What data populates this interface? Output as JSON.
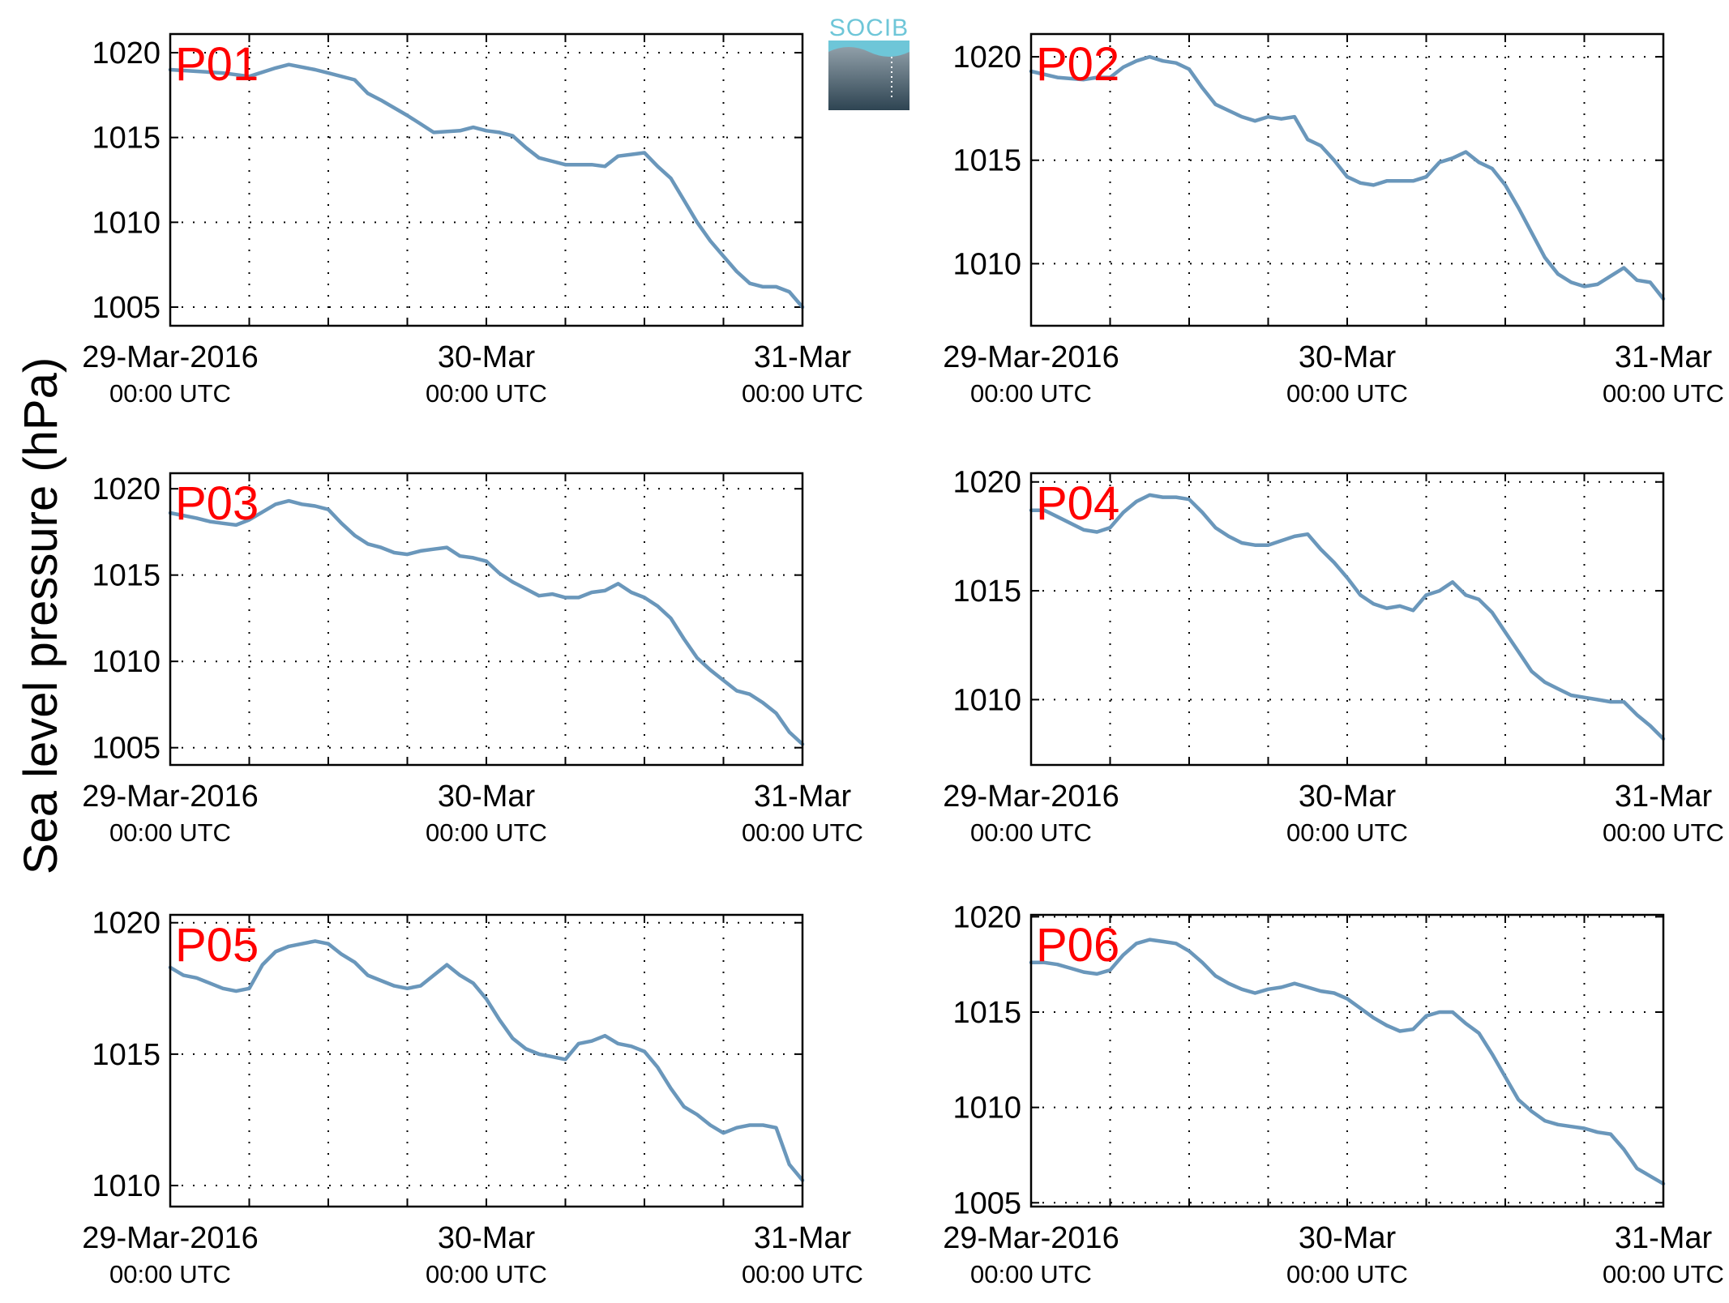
{
  "figure": {
    "ylabel": "Sea level pressure (hPa)",
    "logo_text": "SOCIB"
  },
  "colors": {
    "line": "#6a97bb",
    "label": "#ff0000",
    "logo": "#6ec6d8"
  },
  "chart_data": [
    {
      "type": "line",
      "label": "P01",
      "xlabels": [
        {
          "date": "29-Mar-2016",
          "time": "00:00 UTC"
        },
        {
          "date": "30-Mar",
          "time": "00:00 UTC"
        },
        {
          "date": "31-Mar",
          "time": "00:00 UTC"
        }
      ],
      "xlim": [
        0,
        48
      ],
      "ylim": [
        1003.9,
        1021.1
      ],
      "yticks": [
        1005,
        1010,
        1015,
        1020
      ],
      "grid": true,
      "x": [
        0,
        2,
        4,
        5,
        6,
        8,
        9,
        11,
        12,
        14,
        15,
        16,
        18,
        19,
        20,
        22,
        23,
        24,
        25,
        26,
        27,
        28,
        29,
        30,
        31,
        32,
        33,
        34,
        35,
        36,
        37,
        38,
        39,
        40,
        41,
        42,
        43,
        44,
        45,
        46,
        47,
        48
      ],
      "y": [
        1019.0,
        1018.9,
        1018.8,
        1018.7,
        1018.6,
        1019.1,
        1019.3,
        1019.0,
        1018.8,
        1018.4,
        1017.6,
        1017.2,
        1016.3,
        1015.8,
        1015.3,
        1015.4,
        1015.6,
        1015.4,
        1015.3,
        1015.1,
        1014.4,
        1013.8,
        1013.6,
        1013.4,
        1013.4,
        1013.4,
        1013.3,
        1013.9,
        1014.0,
        1014.1,
        1013.3,
        1012.6,
        1011.3,
        1010.0,
        1008.9,
        1008.0,
        1007.1,
        1006.4,
        1006.2,
        1006.2,
        1005.9,
        1005.0
      ]
    },
    {
      "type": "line",
      "label": "P02",
      "xlabels": [
        {
          "date": "29-Mar-2016",
          "time": "00:00 UTC"
        },
        {
          "date": "30-Mar",
          "time": "00:00 UTC"
        },
        {
          "date": "31-Mar",
          "time": "00:00 UTC"
        }
      ],
      "xlim": [
        0,
        48
      ],
      "ylim": [
        1007.0,
        1021.1
      ],
      "yticks": [
        1010,
        1015,
        1020
      ],
      "grid": true,
      "x": [
        0,
        2,
        4,
        5,
        6,
        7,
        8,
        9,
        10,
        11,
        12,
        13,
        14,
        15,
        16,
        17,
        18,
        19,
        20,
        21,
        22,
        23,
        24,
        25,
        26,
        27,
        28,
        29,
        30,
        31,
        32,
        33,
        34,
        35,
        36,
        37,
        38,
        39,
        40,
        41,
        42,
        43,
        44,
        45,
        46,
        47,
        48
      ],
      "y": [
        1019.3,
        1019.0,
        1018.9,
        1019.0,
        1019.0,
        1019.5,
        1019.8,
        1020.0,
        1019.8,
        1019.7,
        1019.4,
        1018.5,
        1017.7,
        1017.4,
        1017.1,
        1016.9,
        1017.1,
        1017.0,
        1017.1,
        1016.0,
        1015.7,
        1015.0,
        1014.2,
        1013.9,
        1013.8,
        1014.0,
        1014.0,
        1014.0,
        1014.2,
        1014.9,
        1015.1,
        1015.4,
        1014.9,
        1014.6,
        1013.8,
        1012.7,
        1011.5,
        1010.3,
        1009.5,
        1009.1,
        1008.9,
        1009.0,
        1009.4,
        1009.8,
        1009.2,
        1009.1,
        1008.3
      ]
    },
    {
      "type": "line",
      "label": "P03",
      "xlabels": [
        {
          "date": "29-Mar-2016",
          "time": "00:00 UTC"
        },
        {
          "date": "30-Mar",
          "time": "00:00 UTC"
        },
        {
          "date": "31-Mar",
          "time": "00:00 UTC"
        }
      ],
      "xlim": [
        0,
        48
      ],
      "ylim": [
        1004.0,
        1020.9
      ],
      "yticks": [
        1005,
        1010,
        1015,
        1020
      ],
      "grid": true,
      "x": [
        0,
        2,
        3,
        4,
        5,
        6,
        8,
        9,
        10,
        11,
        12,
        13,
        14,
        15,
        16,
        17,
        18,
        19,
        20,
        21,
        22,
        23,
        24,
        25,
        26,
        27,
        28,
        29,
        30,
        31,
        32,
        33,
        34,
        35,
        36,
        37,
        38,
        39,
        40,
        41,
        42,
        43,
        44,
        45,
        46,
        47,
        48
      ],
      "y": [
        1018.6,
        1018.3,
        1018.1,
        1018.0,
        1017.9,
        1018.2,
        1019.1,
        1019.3,
        1019.1,
        1019.0,
        1018.8,
        1018.0,
        1017.3,
        1016.8,
        1016.6,
        1016.3,
        1016.2,
        1016.4,
        1016.5,
        1016.6,
        1016.1,
        1016.0,
        1015.8,
        1015.1,
        1014.6,
        1014.2,
        1013.8,
        1013.9,
        1013.7,
        1013.7,
        1014.0,
        1014.1,
        1014.5,
        1014.0,
        1013.7,
        1013.2,
        1012.5,
        1011.3,
        1010.2,
        1009.5,
        1008.9,
        1008.3,
        1008.1,
        1007.6,
        1007.0,
        1005.9,
        1005.2
      ]
    },
    {
      "type": "line",
      "label": "P04",
      "xlabels": [
        {
          "date": "29-Mar-2016",
          "time": "00:00 UTC"
        },
        {
          "date": "30-Mar",
          "time": "00:00 UTC"
        },
        {
          "date": "31-Mar",
          "time": "00:00 UTC"
        }
      ],
      "xlim": [
        0,
        48
      ],
      "ylim": [
        1007.0,
        1020.4
      ],
      "yticks": [
        1010,
        1015,
        1020
      ],
      "grid": true,
      "x": [
        0,
        1,
        2,
        3,
        4,
        5,
        6,
        7,
        8,
        9,
        10,
        11,
        12,
        13,
        14,
        15,
        16,
        17,
        18,
        19,
        20,
        21,
        22,
        23,
        24,
        25,
        26,
        27,
        28,
        29,
        30,
        31,
        32,
        33,
        34,
        35,
        36,
        37,
        38,
        39,
        40,
        41,
        42,
        43,
        44,
        45,
        46,
        47,
        48
      ],
      "y": [
        1018.7,
        1018.7,
        1018.4,
        1018.1,
        1017.8,
        1017.7,
        1017.9,
        1018.6,
        1019.1,
        1019.4,
        1019.3,
        1019.3,
        1019.2,
        1018.6,
        1017.9,
        1017.5,
        1017.2,
        1017.1,
        1017.1,
        1017.3,
        1017.5,
        1017.6,
        1016.9,
        1016.3,
        1015.6,
        1014.8,
        1014.4,
        1014.2,
        1014.3,
        1014.1,
        1014.8,
        1015.0,
        1015.4,
        1014.8,
        1014.6,
        1014.0,
        1013.1,
        1012.2,
        1011.3,
        1010.8,
        1010.5,
        1010.2,
        1010.1,
        1010.0,
        1009.9,
        1009.9,
        1009.3,
        1008.8,
        1008.2
      ]
    },
    {
      "type": "line",
      "label": "P05",
      "xlabels": [
        {
          "date": "29-Mar-2016",
          "time": "00:00 UTC"
        },
        {
          "date": "30-Mar",
          "time": "00:00 UTC"
        },
        {
          "date": "31-Mar",
          "time": "00:00 UTC"
        }
      ],
      "xlim": [
        0,
        48
      ],
      "ylim": [
        1009.2,
        1020.3
      ],
      "yticks": [
        1010,
        1015,
        1020
      ],
      "grid": true,
      "x": [
        0,
        1,
        2,
        3,
        4,
        5,
        6,
        7,
        8,
        9,
        10,
        11,
        12,
        13,
        14,
        15,
        16,
        17,
        18,
        19,
        20,
        21,
        22,
        23,
        24,
        25,
        26,
        27,
        28,
        29,
        30,
        31,
        32,
        33,
        34,
        35,
        36,
        37,
        38,
        39,
        40,
        41,
        42,
        43,
        44,
        45,
        46,
        47,
        48
      ],
      "y": [
        1018.3,
        1018.0,
        1017.9,
        1017.7,
        1017.5,
        1017.4,
        1017.5,
        1018.4,
        1018.9,
        1019.1,
        1019.2,
        1019.3,
        1019.2,
        1018.8,
        1018.5,
        1018.0,
        1017.8,
        1017.6,
        1017.5,
        1017.6,
        1018.0,
        1018.4,
        1018.0,
        1017.7,
        1017.1,
        1016.3,
        1015.6,
        1015.2,
        1015.0,
        1014.9,
        1014.8,
        1015.4,
        1015.5,
        1015.7,
        1015.4,
        1015.3,
        1015.1,
        1014.5,
        1013.7,
        1013.0,
        1012.7,
        1012.3,
        1012.0,
        1012.2,
        1012.3,
        1012.3,
        1012.2,
        1010.8,
        1010.2
      ]
    },
    {
      "type": "line",
      "label": "P06",
      "xlabels": [
        {
          "date": "29-Mar-2016",
          "time": "00:00 UTC"
        },
        {
          "date": "30-Mar",
          "time": "00:00 UTC"
        },
        {
          "date": "31-Mar",
          "time": "00:00 UTC"
        }
      ],
      "xlim": [
        0,
        48
      ],
      "ylim": [
        1004.8,
        1020.1
      ],
      "yticks": [
        1005,
        1010,
        1015,
        1020
      ],
      "grid": true,
      "x": [
        0,
        1,
        2,
        3,
        4,
        5,
        6,
        7,
        8,
        9,
        10,
        11,
        12,
        13,
        14,
        15,
        16,
        17,
        18,
        19,
        20,
        21,
        22,
        23,
        24,
        25,
        26,
        27,
        28,
        29,
        30,
        31,
        32,
        33,
        34,
        35,
        36,
        37,
        38,
        39,
        40,
        41,
        42,
        43,
        44,
        45,
        46,
        47,
        48
      ],
      "y": [
        1017.6,
        1017.6,
        1017.5,
        1017.3,
        1017.1,
        1017.0,
        1017.2,
        1018.0,
        1018.6,
        1018.8,
        1018.7,
        1018.6,
        1018.2,
        1017.6,
        1016.9,
        1016.5,
        1016.2,
        1016.0,
        1016.2,
        1016.3,
        1016.5,
        1016.3,
        1016.1,
        1016.0,
        1015.7,
        1015.2,
        1014.7,
        1014.3,
        1014.0,
        1014.1,
        1014.8,
        1015.0,
        1015.0,
        1014.4,
        1013.9,
        1012.8,
        1011.6,
        1010.4,
        1009.8,
        1009.3,
        1009.1,
        1009.0,
        1008.9,
        1008.7,
        1008.6,
        1007.8,
        1006.8,
        1006.4,
        1006.0
      ]
    }
  ]
}
